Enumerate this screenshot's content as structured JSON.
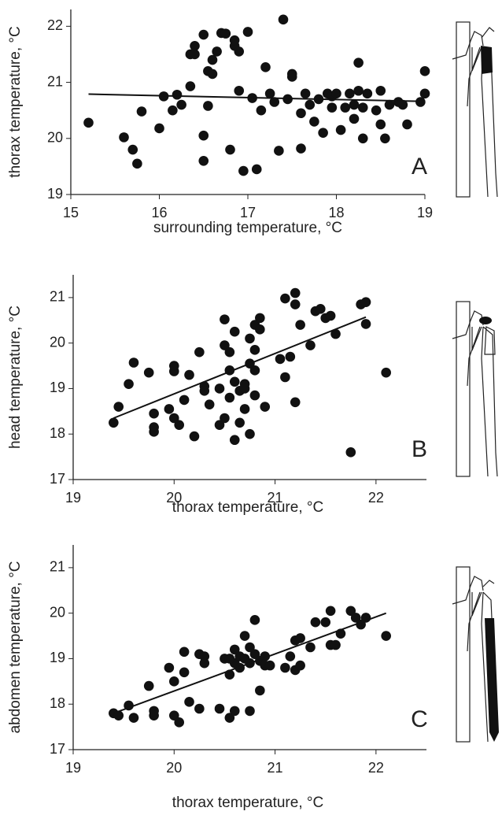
{
  "chart_data": [
    {
      "type": "scatter",
      "panel_label": "A",
      "x_label": "surrounding temperature, °C",
      "y_label": "thorax temperature, °C",
      "xlim": [
        15,
        19
      ],
      "ylim": [
        19,
        22.3
      ],
      "xticks": [
        15,
        16,
        17,
        18,
        19
      ],
      "yticks": [
        19,
        20,
        21,
        22
      ],
      "color": "#111111",
      "x": [
        15.2,
        15.6,
        15.7,
        15.75,
        15.8,
        16.0,
        16.05,
        16.15,
        16.2,
        16.25,
        16.35,
        16.35,
        16.4,
        16.4,
        16.5,
        16.5,
        16.5,
        16.55,
        16.55,
        16.6,
        16.6,
        16.65,
        16.7,
        16.75,
        16.8,
        16.85,
        16.85,
        16.9,
        16.9,
        16.95,
        17.0,
        17.05,
        17.1,
        17.15,
        17.2,
        17.25,
        17.3,
        17.35,
        17.4,
        17.45,
        17.5,
        17.5,
        17.6,
        17.6,
        17.65,
        17.7,
        17.75,
        17.8,
        17.85,
        17.9,
        17.95,
        17.95,
        18.0,
        18.05,
        18.1,
        18.15,
        18.2,
        18.2,
        18.25,
        18.25,
        18.3,
        18.3,
        18.35,
        18.45,
        18.5,
        18.5,
        18.55,
        18.6,
        18.7,
        18.75,
        18.8,
        18.95,
        19.0,
        19.0
      ],
      "series": [
        {
          "values": [
            20.28,
            20.02,
            19.8,
            19.55,
            20.48,
            20.18,
            20.75,
            20.5,
            20.78,
            20.6,
            20.93,
            21.5,
            21.65,
            21.5,
            21.85,
            20.05,
            19.6,
            21.2,
            20.58,
            21.4,
            21.15,
            21.55,
            21.88,
            21.87,
            19.8,
            21.65,
            21.75,
            20.85,
            21.55,
            19.42,
            21.9,
            20.72,
            19.45,
            20.5,
            21.27,
            20.8,
            20.65,
            19.78,
            22.12,
            20.7,
            21.15,
            21.1,
            20.45,
            19.82,
            20.8,
            20.6,
            20.3,
            20.7,
            20.1,
            20.8,
            20.55,
            20.75,
            20.8,
            20.15,
            20.55,
            20.8,
            20.6,
            20.35,
            20.85,
            21.35,
            20.0,
            20.55,
            20.8,
            20.5,
            20.25,
            20.85,
            20.0,
            20.6,
            20.65,
            20.6,
            20.25,
            20.65,
            20.8,
            21.2
          ]
        }
      ],
      "fit_line": {
        "x": [
          15.2,
          19.0
        ],
        "y": [
          20.79,
          20.66
        ]
      }
    },
    {
      "type": "scatter",
      "panel_label": "B",
      "x_label": "thorax temperature, °C",
      "y_label": "head temperature, °C",
      "xlim": [
        19,
        22.5
      ],
      "ylim": [
        17,
        21.5
      ],
      "xticks": [
        19,
        20,
        21,
        22
      ],
      "yticks": [
        17,
        18,
        19,
        20,
        21
      ],
      "color": "#111111",
      "x": [
        19.4,
        19.45,
        19.55,
        19.6,
        19.8,
        19.8,
        19.8,
        19.75,
        19.95,
        20.0,
        20.0,
        20.0,
        20.05,
        20.1,
        20.15,
        20.2,
        20.25,
        20.3,
        20.3,
        20.35,
        20.45,
        20.45,
        20.5,
        20.5,
        20.5,
        20.55,
        20.55,
        20.55,
        20.6,
        20.6,
        20.6,
        20.65,
        20.65,
        20.7,
        20.7,
        20.7,
        20.75,
        20.75,
        20.75,
        20.8,
        20.8,
        20.8,
        20.8,
        20.85,
        20.85,
        20.9,
        21.05,
        21.1,
        21.1,
        21.15,
        21.2,
        21.2,
        21.25,
        21.35,
        21.4,
        21.5,
        21.55,
        21.6,
        21.75,
        21.85,
        21.9,
        21.9,
        22.1,
        21.2,
        21.45
      ],
      "series": [
        {
          "values": [
            18.25,
            18.6,
            19.1,
            19.57,
            18.45,
            18.05,
            18.15,
            19.35,
            18.55,
            19.38,
            19.5,
            18.35,
            18.2,
            18.75,
            19.3,
            17.95,
            19.8,
            19.05,
            18.95,
            18.65,
            18.2,
            19.0,
            19.95,
            20.52,
            18.35,
            19.4,
            19.8,
            18.8,
            17.87,
            19.15,
            20.25,
            18.95,
            18.25,
            18.55,
            19.1,
            19.0,
            20.1,
            18.0,
            19.55,
            20.4,
            19.85,
            18.85,
            19.4,
            20.55,
            20.3,
            18.6,
            19.65,
            19.25,
            20.98,
            19.7,
            21.1,
            18.7,
            20.4,
            19.95,
            20.7,
            20.55,
            20.6,
            20.2,
            17.6,
            20.85,
            20.9,
            20.42,
            19.35,
            20.85,
            20.75
          ]
        }
      ],
      "fit_line": {
        "x": [
          19.4,
          21.9
        ],
        "y": [
          18.35,
          20.57
        ]
      }
    },
    {
      "type": "scatter",
      "panel_label": "C",
      "x_label": "thorax temperature, °C",
      "y_label": "abdomen temperature, °C",
      "xlim": [
        19,
        22.5
      ],
      "ylim": [
        17,
        21.5
      ],
      "xticks": [
        19,
        20,
        21,
        22
      ],
      "yticks": [
        17,
        18,
        19,
        20,
        21
      ],
      "color": "#111111",
      "x": [
        19.4,
        19.45,
        19.55,
        19.6,
        19.75,
        19.8,
        19.8,
        19.95,
        20.0,
        20.0,
        20.05,
        20.1,
        20.1,
        20.15,
        20.25,
        20.25,
        20.3,
        20.3,
        20.45,
        20.5,
        20.55,
        20.55,
        20.6,
        20.6,
        20.6,
        20.65,
        20.65,
        20.7,
        20.7,
        20.75,
        20.75,
        20.8,
        20.8,
        20.85,
        20.85,
        20.9,
        20.95,
        21.1,
        21.15,
        21.2,
        21.2,
        21.25,
        21.25,
        21.35,
        21.4,
        21.5,
        21.55,
        21.55,
        21.65,
        21.75,
        21.8,
        21.85,
        21.9,
        22.1,
        21.6,
        20.75,
        20.55,
        20.9
      ],
      "series": [
        {
          "values": [
            17.8,
            17.75,
            17.97,
            17.7,
            18.4,
            17.85,
            17.75,
            18.8,
            17.75,
            18.5,
            17.6,
            18.7,
            19.15,
            18.05,
            17.9,
            19.1,
            18.9,
            19.05,
            17.9,
            19.0,
            18.65,
            17.7,
            19.2,
            18.9,
            17.85,
            19.05,
            18.8,
            19.5,
            19.0,
            18.9,
            17.85,
            19.85,
            19.1,
            18.95,
            18.3,
            18.85,
            18.85,
            18.8,
            19.05,
            18.75,
            19.4,
            19.45,
            18.85,
            19.25,
            19.8,
            19.8,
            19.3,
            20.05,
            19.55,
            20.05,
            19.9,
            19.75,
            19.9,
            19.5,
            19.3,
            19.25,
            19.0,
            19.05
          ]
        }
      ],
      "fit_line": {
        "x": [
          19.4,
          22.1
        ],
        "y": [
          17.8,
          20.0
        ]
      }
    }
  ]
}
